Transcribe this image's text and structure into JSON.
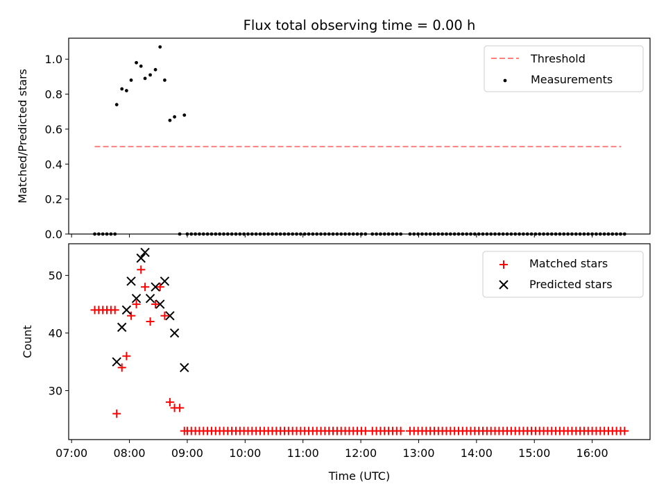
{
  "chart_data": [
    {
      "type": "scatter",
      "title": "Flux total observing time = 0.00 h",
      "xlabel": "",
      "ylabel": "Matched/Predicted stars",
      "xlim_hours": [
        6.95,
        17.0
      ],
      "ylim": [
        0.0,
        1.12
      ],
      "yticks": [
        0.0,
        0.2,
        0.4,
        0.6,
        0.8,
        1.0
      ],
      "ytick_labels": [
        "0.0",
        "0.2",
        "0.4",
        "0.6",
        "0.8",
        "1.0"
      ],
      "legend": [
        "Threshold",
        "Measurements"
      ],
      "threshold": {
        "name": "Threshold",
        "value": 0.5,
        "x_start": 7.4,
        "x_end": 16.5,
        "color": "#ff7f7f"
      },
      "measurements": {
        "name": "Measurements",
        "color": "#000000",
        "points": [
          [
            7.78,
            0.74
          ],
          [
            7.87,
            0.83
          ],
          [
            7.95,
            0.82
          ],
          [
            8.03,
            0.88
          ],
          [
            8.12,
            0.98
          ],
          [
            8.2,
            0.96
          ],
          [
            8.27,
            0.89
          ],
          [
            8.36,
            0.91
          ],
          [
            8.45,
            0.94
          ],
          [
            8.53,
            1.07
          ],
          [
            8.61,
            0.88
          ],
          [
            8.7,
            0.65
          ],
          [
            8.78,
            0.67
          ],
          [
            8.95,
            0.68
          ]
        ],
        "zero_points_x": [
          7.4,
          7.47,
          7.54,
          7.61,
          7.68,
          7.75,
          8.87,
          9.0,
          9.07,
          9.14,
          9.21,
          9.28,
          9.35,
          9.42,
          9.49,
          9.56,
          9.63,
          9.7,
          9.77,
          9.84,
          9.91,
          9.98,
          10.05,
          10.12,
          10.19,
          10.26,
          10.33,
          10.4,
          10.47,
          10.54,
          10.61,
          10.68,
          10.75,
          10.82,
          10.89,
          10.96,
          11.03,
          11.1,
          11.17,
          11.24,
          11.31,
          11.38,
          11.45,
          11.52,
          11.59,
          11.66,
          11.73,
          11.8,
          11.87,
          11.94,
          12.01,
          12.08,
          12.2,
          12.27,
          12.34,
          12.41,
          12.48,
          12.55,
          12.62,
          12.69,
          12.85,
          12.92,
          12.99,
          13.06,
          13.13,
          13.2,
          13.27,
          13.34,
          13.41,
          13.48,
          13.55,
          13.62,
          13.69,
          13.76,
          13.83,
          13.9,
          13.97,
          14.04,
          14.11,
          14.18,
          14.25,
          14.32,
          14.39,
          14.46,
          14.53,
          14.6,
          14.67,
          14.74,
          14.81,
          14.88,
          14.95,
          15.02,
          15.09,
          15.16,
          15.23,
          15.3,
          15.37,
          15.44,
          15.51,
          15.58,
          15.65,
          15.72,
          15.79,
          15.86,
          15.93,
          16.0,
          16.07,
          16.14,
          16.21,
          16.28,
          16.35,
          16.42,
          16.49,
          16.56
        ]
      }
    },
    {
      "type": "scatter",
      "title": "",
      "xlabel": "Time (UTC)",
      "ylabel": "Count",
      "xlim_hours": [
        6.95,
        17.0
      ],
      "ylim": [
        21.5,
        55.5
      ],
      "yticks": [
        30,
        40,
        50
      ],
      "ytick_labels": [
        "30",
        "40",
        "50"
      ],
      "xticks_hours": [
        7,
        8,
        9,
        10,
        11,
        12,
        13,
        14,
        15,
        16
      ],
      "xtick_labels": [
        "07:00",
        "08:00",
        "09:00",
        "10:00",
        "11:00",
        "12:00",
        "13:00",
        "14:00",
        "15:00",
        "16:00"
      ],
      "legend": [
        "Matched stars",
        "Predicted stars"
      ],
      "matched": {
        "name": "Matched stars",
        "marker": "plus",
        "color": "#ff0000",
        "points": [
          [
            7.4,
            44
          ],
          [
            7.47,
            44
          ],
          [
            7.54,
            44
          ],
          [
            7.61,
            44
          ],
          [
            7.68,
            44
          ],
          [
            7.75,
            44
          ],
          [
            7.78,
            26
          ],
          [
            7.87,
            34
          ],
          [
            7.95,
            36
          ],
          [
            8.03,
            43
          ],
          [
            8.12,
            45
          ],
          [
            8.2,
            51
          ],
          [
            8.27,
            48
          ],
          [
            8.36,
            42
          ],
          [
            8.45,
            45
          ],
          [
            8.53,
            48
          ],
          [
            8.61,
            43
          ],
          [
            8.7,
            28
          ],
          [
            8.78,
            27
          ],
          [
            8.87,
            27
          ]
        ],
        "baseline_value": 23,
        "baseline_x": [
          8.95,
          9.0,
          9.07,
          9.14,
          9.21,
          9.28,
          9.35,
          9.42,
          9.49,
          9.56,
          9.63,
          9.7,
          9.77,
          9.84,
          9.91,
          9.98,
          10.05,
          10.12,
          10.19,
          10.26,
          10.33,
          10.4,
          10.47,
          10.54,
          10.61,
          10.68,
          10.75,
          10.82,
          10.89,
          10.96,
          11.03,
          11.1,
          11.17,
          11.24,
          11.31,
          11.38,
          11.45,
          11.52,
          11.59,
          11.66,
          11.73,
          11.8,
          11.87,
          11.94,
          12.01,
          12.08,
          12.2,
          12.27,
          12.34,
          12.41,
          12.48,
          12.55,
          12.62,
          12.69,
          12.85,
          12.92,
          12.99,
          13.06,
          13.13,
          13.2,
          13.27,
          13.34,
          13.41,
          13.48,
          13.55,
          13.62,
          13.69,
          13.76,
          13.83,
          13.9,
          13.97,
          14.04,
          14.11,
          14.18,
          14.25,
          14.32,
          14.39,
          14.46,
          14.53,
          14.6,
          14.67,
          14.74,
          14.81,
          14.88,
          14.95,
          15.02,
          15.09,
          15.16,
          15.23,
          15.3,
          15.37,
          15.44,
          15.51,
          15.58,
          15.65,
          15.72,
          15.79,
          15.86,
          15.93,
          16.0,
          16.07,
          16.14,
          16.21,
          16.28,
          16.35,
          16.42,
          16.49,
          16.56
        ]
      },
      "predicted": {
        "name": "Predicted stars",
        "marker": "x",
        "color": "#000000",
        "points": [
          [
            7.78,
            35
          ],
          [
            7.87,
            41
          ],
          [
            7.95,
            44
          ],
          [
            8.03,
            49
          ],
          [
            8.12,
            46
          ],
          [
            8.2,
            53
          ],
          [
            8.27,
            54
          ],
          [
            8.36,
            46
          ],
          [
            8.45,
            48
          ],
          [
            8.53,
            45
          ],
          [
            8.61,
            49
          ],
          [
            8.7,
            43
          ],
          [
            8.78,
            40
          ],
          [
            8.95,
            34
          ]
        ]
      }
    }
  ]
}
